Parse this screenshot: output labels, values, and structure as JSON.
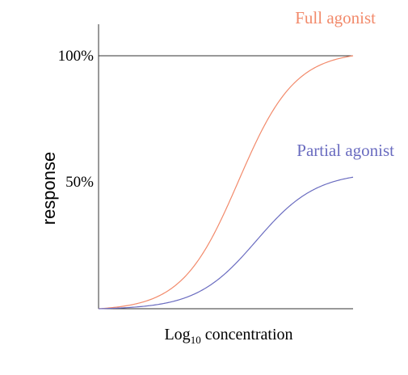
{
  "chart_data": {
    "type": "line",
    "title": "",
    "xlabel": {
      "base": "Log",
      "subscript": "10",
      "rest": " concentration"
    },
    "ylabel": "response",
    "y_ticks": [
      {
        "value": 100,
        "label": "100%"
      },
      {
        "value": 50,
        "label": "50%"
      }
    ],
    "ylim": [
      0,
      100
    ],
    "x_range": [
      0,
      100
    ],
    "grid": false,
    "series": [
      {
        "name": "Full agonist",
        "color": "#f28a6b",
        "max": 100,
        "ec50": 55,
        "slope": 0.09,
        "x": [
          0,
          10,
          20,
          30,
          40,
          50,
          55,
          60,
          70,
          80,
          90,
          100
        ],
        "values": [
          0.7,
          1.7,
          4.3,
          10.6,
          23.6,
          43.8,
          50.0,
          61.1,
          80.3,
          91.8,
          96.8,
          100
        ]
      },
      {
        "name": "Partial agonist",
        "color": "#6a6cc0",
        "max": 52,
        "ec50": 62,
        "slope": 0.085,
        "x": [
          0,
          10,
          20,
          30,
          40,
          50,
          60,
          70,
          80,
          90,
          100
        ],
        "values": [
          0.3,
          0.7,
          1.5,
          3.2,
          6.4,
          11.8,
          20.0,
          29.8,
          38.5,
          44.8,
          52
        ]
      }
    ]
  }
}
